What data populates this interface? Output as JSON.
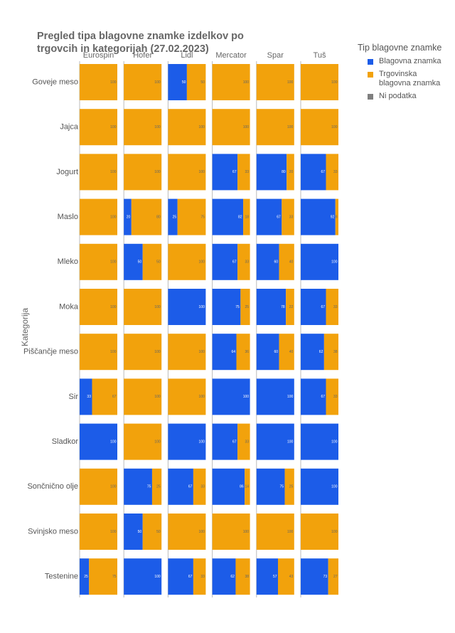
{
  "chart_data": {
    "type": "bar",
    "orientation": "horizontal",
    "stacked": true,
    "title": "Pregled tipa blagovne znamke izdelkov po trgovcih in kategorijah (27.02.2023)",
    "y_label": "Kategorija",
    "legend_title": "Tip blagovne znamke",
    "columns": [
      "Eurospin",
      "Hofer",
      "Lidl",
      "Mercator",
      "Spar",
      "Tuš"
    ],
    "categories": [
      "Goveje meso",
      "Jajca",
      "Jogurt",
      "Maslo",
      "Mleko",
      "Moka",
      "Piščančje meso",
      "Sir",
      "Sladkor",
      "Sončnično olje",
      "Svinjsko meso",
      "Testenine"
    ],
    "xlim": [
      0,
      100
    ],
    "series": [
      {
        "name": "Blagovna znamka",
        "color": "#1c5ce8",
        "values": [
          [
            0,
            0,
            50,
            0,
            0,
            0
          ],
          [
            0,
            0,
            0,
            0,
            0,
            0
          ],
          [
            0,
            0,
            0,
            67,
            80,
            67
          ],
          [
            0,
            20,
            25,
            82,
            67,
            92
          ],
          [
            0,
            50,
            0,
            67,
            60,
            100
          ],
          [
            0,
            0,
            100,
            75,
            78,
            67
          ],
          [
            0,
            0,
            0,
            64,
            60,
            62
          ],
          [
            33,
            0,
            0,
            100,
            100,
            67
          ],
          [
            100,
            0,
            100,
            67,
            100,
            100
          ],
          [
            0,
            75,
            67,
            86,
            75,
            100
          ],
          [
            0,
            50,
            0,
            0,
            0,
            0
          ],
          [
            25,
            100,
            67,
            62,
            57,
            73
          ]
        ]
      },
      {
        "name": "Trgovinska blagovna znamka",
        "color": "#f2a20c",
        "values": [
          [
            100,
            100,
            50,
            100,
            100,
            100
          ],
          [
            100,
            100,
            100,
            100,
            100,
            100
          ],
          [
            100,
            100,
            100,
            33,
            20,
            33
          ],
          [
            100,
            80,
            75,
            18,
            33,
            8
          ],
          [
            100,
            50,
            100,
            33,
            40,
            0
          ],
          [
            100,
            100,
            0,
            25,
            22,
            33
          ],
          [
            100,
            100,
            100,
            36,
            40,
            38
          ],
          [
            67,
            100,
            100,
            0,
            0,
            33
          ],
          [
            0,
            100,
            0,
            33,
            0,
            0
          ],
          [
            100,
            25,
            33,
            14,
            25,
            0
          ],
          [
            100,
            50,
            100,
            100,
            100,
            100
          ],
          [
            75,
            0,
            33,
            38,
            43,
            27
          ]
        ]
      },
      {
        "name": "Ni podatka",
        "color": "#7f7f7f"
      }
    ]
  }
}
